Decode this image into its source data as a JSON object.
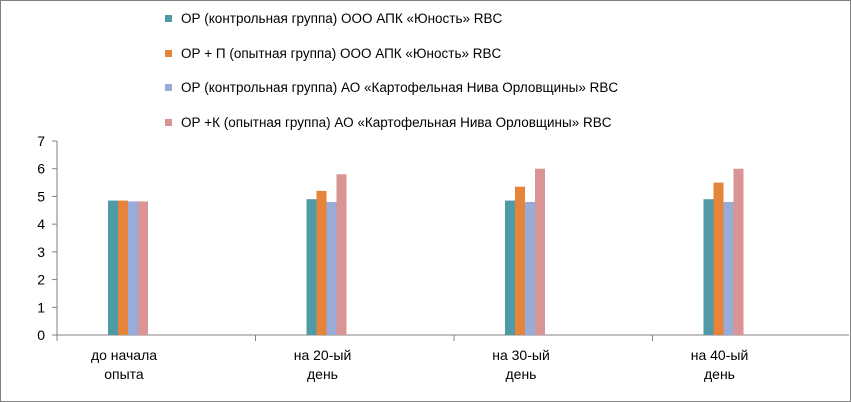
{
  "chart_data": {
    "type": "bar",
    "categories": [
      [
        "до начала",
        "опыта"
      ],
      [
        "на 20-ый",
        "день"
      ],
      [
        "на 30-ый",
        "день"
      ],
      [
        "на 40-ый",
        "день"
      ]
    ],
    "series": [
      {
        "name": "ОР (контрольная группа) ООО АПК «Юность» RBC",
        "color": "#4e9aa6",
        "values": [
          4.85,
          4.9,
          4.85,
          4.9
        ]
      },
      {
        "name": "ОР + П (опытная группа) ООО АПК «Юность»  RBC",
        "color": "#e5843a",
        "values": [
          4.85,
          5.2,
          5.35,
          5.5
        ]
      },
      {
        "name": "ОР  (контрольная группа) АО «Картофельная Нива Орловщины» RBC",
        "color": "#97acd8",
        "values": [
          4.82,
          4.8,
          4.8,
          4.8
        ]
      },
      {
        "name": "ОР +К (опытная группа) АО «Картофельная Нива Орловщины» RBC",
        "color": "#d99594",
        "values": [
          4.82,
          5.8,
          6.0,
          6.0
        ]
      }
    ],
    "ylim": [
      0,
      7
    ],
    "yticks": [
      0,
      1,
      2,
      3,
      4,
      5,
      6,
      7
    ],
    "grid": false,
    "legend_position": "top"
  }
}
